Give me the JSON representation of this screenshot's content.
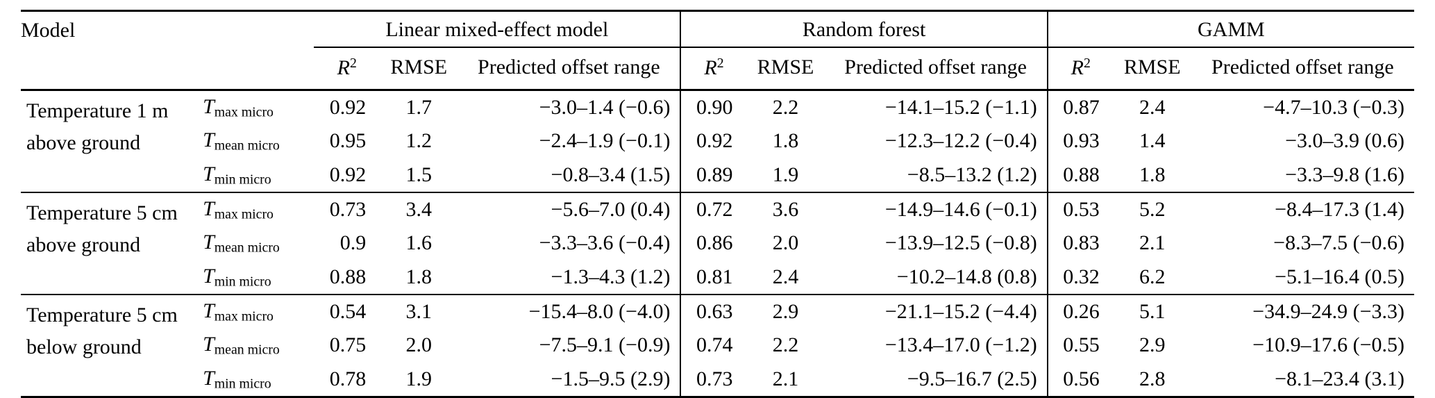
{
  "page": {
    "background": "#ffffff",
    "text_color": "#000000",
    "rule_color": "#000000"
  },
  "table": {
    "corner_header": "Model",
    "variable_base": "T",
    "group_headers": [
      "Linear mixed-effect model",
      "Random forest",
      "GAMM"
    ],
    "subheader": {
      "r_base": "R",
      "r_sup": "2",
      "rmse": "RMSE",
      "offset": "Predicted offset range"
    },
    "row_groups": [
      {
        "label_line1": "Temperature 1 m",
        "label_line2": "above ground",
        "rows": [
          {
            "var_sub": "max micro",
            "lmm": {
              "r2": "0.92",
              "rmse": "1.7",
              "offset": "−3.0–1.4 (−0.6)"
            },
            "rf": {
              "r2": "0.90",
              "rmse": "2.2",
              "offset": "−14.1–15.2 (−1.1)"
            },
            "gamm": {
              "r2": "0.87",
              "rmse": "2.4",
              "offset": "−4.7–10.3 (−0.3)"
            }
          },
          {
            "var_sub": "mean micro",
            "lmm": {
              "r2": "0.95",
              "rmse": "1.2",
              "offset": "−2.4–1.9 (−0.1)"
            },
            "rf": {
              "r2": "0.92",
              "rmse": "1.8",
              "offset": "−12.3–12.2 (−0.4)"
            },
            "gamm": {
              "r2": "0.93",
              "rmse": "1.4",
              "offset": "−3.0–3.9 (0.6)"
            }
          },
          {
            "var_sub": "min micro",
            "lmm": {
              "r2": "0.92",
              "rmse": "1.5",
              "offset": "−0.8–3.4 (1.5)"
            },
            "rf": {
              "r2": "0.89",
              "rmse": "1.9",
              "offset": "−8.5–13.2 (1.2)"
            },
            "gamm": {
              "r2": "0.88",
              "rmse": "1.8",
              "offset": "−3.3–9.8 (1.6)"
            }
          }
        ]
      },
      {
        "label_line1": "Temperature 5 cm",
        "label_line2": "above ground",
        "rows": [
          {
            "var_sub": "max micro",
            "lmm": {
              "r2": "0.73",
              "rmse": "3.4",
              "offset": "−5.6–7.0 (0.4)"
            },
            "rf": {
              "r2": "0.72",
              "rmse": "3.6",
              "offset": "−14.9–14.6 (−0.1)"
            },
            "gamm": {
              "r2": "0.53",
              "rmse": "5.2",
              "offset": "−8.4–17.3 (1.4)"
            }
          },
          {
            "var_sub": "mean micro",
            "lmm": {
              "r2": "0.9",
              "rmse": "1.6",
              "offset": "−3.3–3.6 (−0.4)"
            },
            "rf": {
              "r2": "0.86",
              "rmse": "2.0",
              "offset": "−13.9–12.5 (−0.8)"
            },
            "gamm": {
              "r2": "0.83",
              "rmse": "2.1",
              "offset": "−8.3–7.5 (−0.6)"
            }
          },
          {
            "var_sub": "min micro",
            "lmm": {
              "r2": "0.88",
              "rmse": "1.8",
              "offset": "−1.3–4.3 (1.2)"
            },
            "rf": {
              "r2": "0.81",
              "rmse": "2.4",
              "offset": "−10.2–14.8 (0.8)"
            },
            "gamm": {
              "r2": "0.32",
              "rmse": "6.2",
              "offset": "−5.1–16.4 (0.5)"
            }
          }
        ]
      },
      {
        "label_line1": "Temperature 5 cm",
        "label_line2": "below ground",
        "rows": [
          {
            "var_sub": "max micro",
            "lmm": {
              "r2": "0.54",
              "rmse": "3.1",
              "offset": "−15.4–8.0 (−4.0)"
            },
            "rf": {
              "r2": "0.63",
              "rmse": "2.9",
              "offset": "−21.1–15.2 (−4.4)"
            },
            "gamm": {
              "r2": "0.26",
              "rmse": "5.1",
              "offset": "−34.9–24.9 (−3.3)"
            }
          },
          {
            "var_sub": "mean micro",
            "lmm": {
              "r2": "0.75",
              "rmse": "2.0",
              "offset": "−7.5–9.1 (−0.9)"
            },
            "rf": {
              "r2": "0.74",
              "rmse": "2.2",
              "offset": "−13.4–17.0 (−1.2)"
            },
            "gamm": {
              "r2": "0.55",
              "rmse": "2.9",
              "offset": "−10.9–17.6 (−0.5)"
            }
          },
          {
            "var_sub": "min micro",
            "lmm": {
              "r2": "0.78",
              "rmse": "1.9",
              "offset": "−1.5–9.5 (2.9)"
            },
            "rf": {
              "r2": "0.73",
              "rmse": "2.1",
              "offset": "−9.5–16.7 (2.5)"
            },
            "gamm": {
              "r2": "0.56",
              "rmse": "2.8",
              "offset": "−8.1–23.4 (3.1)"
            }
          }
        ]
      }
    ]
  }
}
